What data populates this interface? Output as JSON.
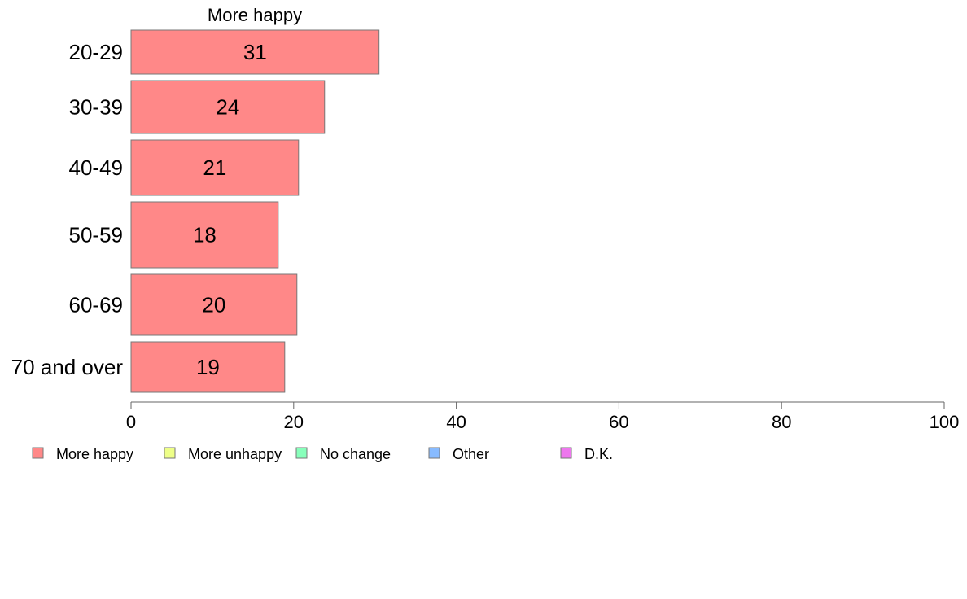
{
  "chart_data": {
    "type": "bar",
    "orientation": "horizontal",
    "title": "",
    "xlabel": "",
    "ylabel": "",
    "xlim": [
      0,
      100
    ],
    "xticks": [
      0,
      20,
      40,
      60,
      80,
      100
    ],
    "grid": false,
    "legend_position": "bottom-left",
    "categories": [
      "20-29",
      "30-39",
      "40-49",
      "50-59",
      "60-69",
      "70 and over"
    ],
    "series": [
      {
        "name": "More happy",
        "color": "#ff8888",
        "values": [
          30.5,
          23.8,
          20.6,
          18.1,
          20.4,
          18.9
        ],
        "labels": [
          "31",
          "24",
          "21",
          "18",
          "20",
          "19"
        ]
      }
    ],
    "series_title": "More happy",
    "legend": [
      {
        "name": "More happy",
        "color": "#ff8888"
      },
      {
        "name": "More unhappy",
        "color": "#eeff88"
      },
      {
        "name": "No change",
        "color": "#88ffbb"
      },
      {
        "name": "Other",
        "color": "#88bbff"
      },
      {
        "name": "D.K.",
        "color": "#ee77ee"
      }
    ]
  }
}
